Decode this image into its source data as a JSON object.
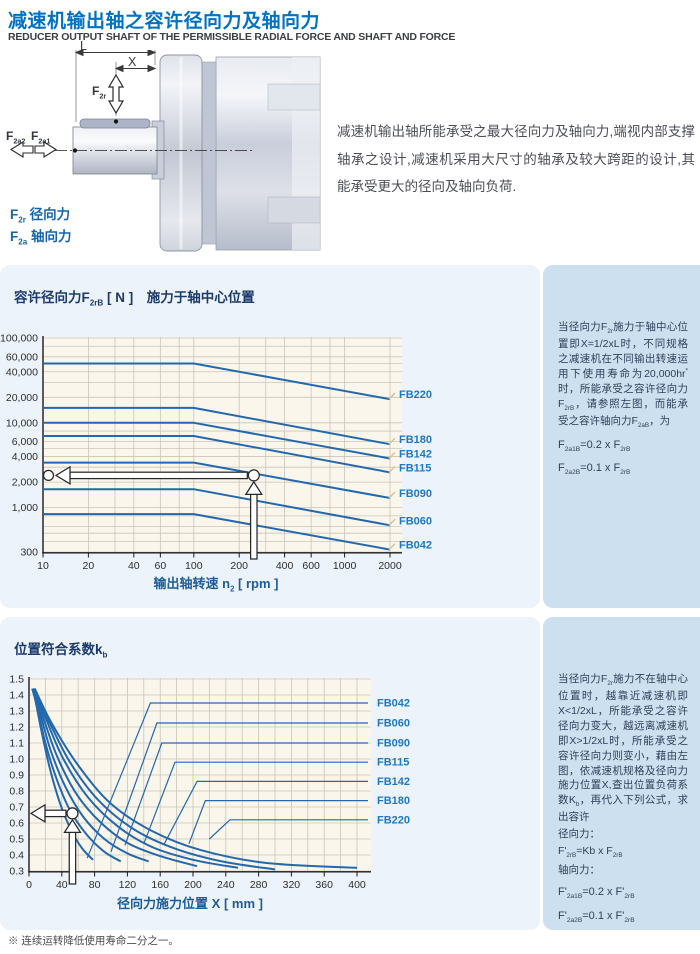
{
  "header": {
    "title": "减速机输出轴之容许径向力及轴向力",
    "subtitle": "REDUCER OUTPUT SHAFT OF THE PERMISSIBLE RADIAL FORCE AND SHAFT AND FORCE"
  },
  "intro": {
    "text": "减速机输出轴所能承受之最大径向力及轴向力,端视内部支撑轴承之设计,减速机采用大尺寸的轴承及较大跨距的设计,其能承受更大的径向及轴向负荷."
  },
  "drawing": {
    "labels": {
      "l": "L",
      "x": "X",
      "f2r": [
        "F",
        {
          "s": "2r"
        }
      ],
      "f2a2": [
        "F",
        {
          "s": "2a2"
        }
      ],
      "f2a1": [
        "F",
        {
          "s": "2a1"
        }
      ]
    },
    "legend_radial": [
      "F",
      {
        "s": "2r"
      },
      " 径向力"
    ],
    "legend_axial": [
      "F",
      {
        "s": "2a"
      },
      " 轴向力"
    ]
  },
  "colors": {
    "accent_blue": "#0072c6",
    "curve_blue": "#2368ae",
    "label_blue": "#1d78c8",
    "navy": "#1b3a6b",
    "panel_light": "#edf3fa",
    "panel_sidebar": "#cde0ef",
    "plot_cream": "#faf6ec"
  },
  "section1": {
    "title": [
      "容许径向力F",
      {
        "s": "2rB"
      },
      " [ N ]　施力于轴中心位置"
    ],
    "axis_title": [
      "输出轴转速 n",
      {
        "s": "2"
      },
      " [ rpm ]"
    ],
    "sidebar": {
      "paragraph": [
        "当径向力F",
        {
          "s": "2r"
        },
        "施力于轴中心位置即X=1/2xL时，不同规格之减速机在不同输出转速运用下使用寿命为20,000hr",
        {
          "p": "*"
        },
        " 时，所能承受之容许径向力F",
        {
          "s": "2rB"
        },
        "，请参照左图，而能承受之容许轴向力F",
        {
          "s": "2aB"
        },
        "，为"
      ],
      "f1": [
        "F",
        {
          "s": "2a1B"
        },
        "=0.2 x F",
        {
          "s": "2rB"
        }
      ],
      "f2": [
        "F",
        {
          "s": "2a2B"
        },
        "=0.1 x F",
        {
          "s": "2rB"
        }
      ]
    }
  },
  "section2": {
    "title": [
      "位置符合系数k",
      {
        "s": "b"
      }
    ],
    "axis_title": "径向力施力位置  X [ mm ]",
    "sidebar": {
      "paragraph": [
        "当径向力F",
        {
          "s": "2r"
        },
        "施力不在轴中心位置时，越靠近减速机即X<1/2xL，所能承受之容许径向力变大，越远离减速机即X>1/2xL时，所能承受之容许径向力则变小，藉由左图，依减速机规格及径向力施力位置X,查出位置负荷系数K",
        {
          "s": "b"
        },
        "，再代入下列公式，求出容许"
      ],
      "radial_label": "径向力：",
      "f_radial": [
        "F'",
        {
          "s": "2rB"
        },
        "=Kb x F",
        {
          "s": "2rB"
        }
      ],
      "axial_label": "轴向力：",
      "f_axial1": [
        "F'",
        {
          "s": "2a1B"
        },
        "=0.2 x F'",
        {
          "s": "2rB"
        }
      ],
      "f_axial2": [
        "F'",
        {
          "s": "2a2B"
        },
        "=0.1 x F'",
        {
          "s": "2rB"
        }
      ]
    }
  },
  "footer": {
    "note": "※ 连续运转降低使用寿命二分之一。"
  },
  "chart_data": [
    {
      "name": "permissible-radial-force",
      "type": "line",
      "title": "容许径向力F2rB [ N ] 施力于轴中心位置",
      "xlabel": "输出轴转速 n2 [ rpm ]",
      "ylabel": "容许径向力 F2rB [ N ]",
      "x_scale": "log",
      "y_scale": "log",
      "x_range": [
        10,
        2000
      ],
      "y_range": [
        300,
        100000
      ],
      "grid": true,
      "legend_position": "right-edge-labels",
      "x_ticks": [
        {
          "v": 10,
          "t": "10"
        },
        {
          "v": 20,
          "t": "20"
        },
        {
          "v": 40,
          "t": "40"
        },
        {
          "v": 60,
          "t": "60"
        },
        {
          "v": 100,
          "t": "100"
        },
        {
          "v": 200,
          "t": "200"
        },
        {
          "v": 400,
          "t": "400"
        },
        {
          "v": 600,
          "t": "600"
        },
        {
          "v": 1000,
          "t": "1000"
        },
        {
          "v": 2000,
          "t": "2000"
        }
      ],
      "y_ticks": [
        {
          "v": 100000,
          "t": "100,000"
        },
        {
          "v": 60000,
          "t": "60,000"
        },
        {
          "v": 40000,
          "t": "40,000"
        },
        {
          "v": 20000,
          "t": "20,000"
        },
        {
          "v": 10000,
          "t": "10,000"
        },
        {
          "v": 6000,
          "t": "6,000"
        },
        {
          "v": 4000,
          "t": "4,000"
        },
        {
          "v": 2000,
          "t": "2,000"
        },
        {
          "v": 1000,
          "t": "1,000"
        },
        {
          "v": 300,
          "t": "300"
        }
      ],
      "x_grid": [
        10,
        20,
        30,
        40,
        60,
        80,
        100,
        200,
        300,
        400,
        600,
        800,
        1000,
        2000
      ],
      "y_grid": [
        300,
        400,
        500,
        600,
        800,
        1000,
        2000,
        3000,
        4000,
        5000,
        6000,
        8000,
        10000,
        20000,
        30000,
        40000,
        50000,
        60000,
        80000,
        100000
      ],
      "line_color": "#2368ae",
      "label_color": "#1d78c8",
      "grid_color": "#c9c5ba",
      "plot_bg": "#faf6ec",
      "series": [
        {
          "name": "FB220",
          "points": [
            [
              10,
              50000
            ],
            [
              100,
              50000
            ],
            [
              2000,
              19000
            ]
          ]
        },
        {
          "name": "FB180",
          "points": [
            [
              10,
              15000
            ],
            [
              100,
              15000
            ],
            [
              2000,
              5600
            ]
          ]
        },
        {
          "name": "FB142",
          "points": [
            [
              10,
              10000
            ],
            [
              100,
              10000
            ],
            [
              2000,
              3800
            ]
          ]
        },
        {
          "name": "FB115",
          "points": [
            [
              10,
              7000
            ],
            [
              100,
              7000
            ],
            [
              2000,
              2600
            ]
          ]
        },
        {
          "name": "FB090",
          "points": [
            [
              10,
              3400
            ],
            [
              100,
              3400
            ],
            [
              2000,
              1300
            ]
          ]
        },
        {
          "name": "FB060",
          "points": [
            [
              10,
              1650
            ],
            [
              100,
              1650
            ],
            [
              2000,
              620
            ]
          ]
        },
        {
          "name": "FB042",
          "points": [
            [
              10,
              840
            ],
            [
              100,
              840
            ],
            [
              2000,
              320
            ]
          ]
        }
      ],
      "annotation": {
        "example_rpm": 250,
        "example_force_N": 2400
      }
    },
    {
      "name": "position-coefficient-kb",
      "type": "line",
      "title": "位置符合系数kb",
      "xlabel": "径向力施力位置 X [ mm ]",
      "ylabel": "kb",
      "x_scale": "linear",
      "y_scale": "linear",
      "x_range": [
        0,
        400
      ],
      "y_range": [
        0.3,
        1.5
      ],
      "grid": true,
      "legend_position": "right-edge-labels",
      "x_ticks": [
        {
          "v": 0,
          "t": "0"
        },
        {
          "v": 40,
          "t": "40"
        },
        {
          "v": 80,
          "t": "80"
        },
        {
          "v": 120,
          "t": "120"
        },
        {
          "v": 160,
          "t": "160"
        },
        {
          "v": 200,
          "t": "200"
        },
        {
          "v": 240,
          "t": "240"
        },
        {
          "v": 280,
          "t": "280"
        },
        {
          "v": 320,
          "t": "320"
        },
        {
          "v": 360,
          "t": "360"
        },
        {
          "v": 400,
          "t": "400"
        }
      ],
      "y_ticks": [
        {
          "v": 1.5,
          "t": "1.5"
        },
        {
          "v": 1.4,
          "t": "1.4"
        },
        {
          "v": 1.3,
          "t": "1.3"
        },
        {
          "v": 1.2,
          "t": "1.2"
        },
        {
          "v": 1.1,
          "t": "1.1"
        },
        {
          "v": 1.0,
          "t": "1.0"
        },
        {
          "v": 0.9,
          "t": "0.9"
        },
        {
          "v": 0.8,
          "t": "0.8"
        },
        {
          "v": 0.7,
          "t": "0.7"
        },
        {
          "v": 0.6,
          "t": "0.6"
        },
        {
          "v": 0.5,
          "t": "0.5"
        },
        {
          "v": 0.4,
          "t": "0.4"
        },
        {
          "v": 0.3,
          "t": "0.3"
        }
      ],
      "x_grid": [
        0,
        20,
        40,
        60,
        80,
        100,
        120,
        140,
        160,
        180,
        200,
        220,
        240,
        260,
        280,
        300,
        320,
        340,
        360,
        380,
        400
      ],
      "y_grid": [
        0.3,
        0.4,
        0.5,
        0.6,
        0.7,
        0.8,
        0.9,
        1.0,
        1.1,
        1.2,
        1.3,
        1.4,
        1.5
      ],
      "line_color": "#2368ae",
      "label_color": "#1d78c8",
      "grid_color": "#c9c5ba",
      "plot_bg": "#faf6ec",
      "series": [
        {
          "name": "FB042",
          "points": [
            [
              4,
              1.44
            ],
            [
              8,
              1.36
            ],
            [
              15,
              1.18
            ],
            [
              25,
              0.95
            ],
            [
              38,
              0.72
            ],
            [
              52,
              0.55
            ],
            [
              65,
              0.44
            ],
            [
              78,
              0.37
            ]
          ],
          "leader": {
            "attach": [
              71,
              0.38
            ],
            "elbow": [
              148,
              1.35
            ]
          }
        },
        {
          "name": "FB060",
          "points": [
            [
              4,
              1.44
            ],
            [
              10,
              1.33
            ],
            [
              20,
              1.1
            ],
            [
              34,
              0.87
            ],
            [
              50,
              0.68
            ],
            [
              70,
              0.53
            ],
            [
              92,
              0.42
            ],
            [
              112,
              0.36
            ]
          ],
          "leader": {
            "attach": [
              100,
              0.42
            ],
            "elbow": [
              156,
              1.225
            ]
          }
        },
        {
          "name": "FB090",
          "points": [
            [
              5,
              1.44
            ],
            [
              13,
              1.3
            ],
            [
              26,
              1.06
            ],
            [
              44,
              0.83
            ],
            [
              66,
              0.64
            ],
            [
              92,
              0.5
            ],
            [
              120,
              0.41
            ],
            [
              146,
              0.36
            ]
          ],
          "leader": {
            "attach": [
              117,
              0.46
            ],
            "elbow": [
              162,
              1.1
            ]
          }
        },
        {
          "name": "FB115",
          "points": [
            [
              5,
              1.44
            ],
            [
              16,
              1.28
            ],
            [
              34,
              1.02
            ],
            [
              58,
              0.78
            ],
            [
              88,
              0.6
            ],
            [
              122,
              0.47
            ],
            [
              162,
              0.39
            ],
            [
              205,
              0.33
            ]
          ],
          "leader": {
            "attach": [
              140,
              0.47
            ],
            "elbow": [
              178,
              0.98
            ]
          }
        },
        {
          "name": "FB142",
          "points": [
            [
              6,
              1.44
            ],
            [
              20,
              1.26
            ],
            [
              42,
              1.0
            ],
            [
              72,
              0.76
            ],
            [
              108,
              0.58
            ],
            [
              150,
              0.45
            ],
            [
              200,
              0.37
            ],
            [
              255,
              0.32
            ]
          ],
          "leader": {
            "attach": [
              165,
              0.47
            ],
            "elbow": [
              205,
              0.86
            ]
          }
        },
        {
          "name": "FB180",
          "points": [
            [
              6,
              1.44
            ],
            [
              24,
              1.24
            ],
            [
              50,
              0.98
            ],
            [
              85,
              0.74
            ],
            [
              128,
              0.56
            ],
            [
              178,
              0.44
            ],
            [
              235,
              0.36
            ],
            [
              300,
              0.31
            ]
          ],
          "leader": {
            "attach": [
              195,
              0.47
            ],
            "elbow": [
              215,
              0.74
            ]
          }
        },
        {
          "name": "FB220",
          "points": [
            [
              7,
              1.44
            ],
            [
              28,
              1.22
            ],
            [
              60,
              0.96
            ],
            [
              100,
              0.72
            ],
            [
              150,
              0.55
            ],
            [
              210,
              0.43
            ],
            [
              290,
              0.35
            ],
            [
              400,
              0.32
            ]
          ],
          "leader": {
            "attach": [
              220,
              0.5
            ],
            "elbow": [
              245,
              0.62
            ]
          }
        }
      ],
      "annotation": {
        "example_x_mm": 53,
        "example_kb": 0.66
      }
    }
  ]
}
